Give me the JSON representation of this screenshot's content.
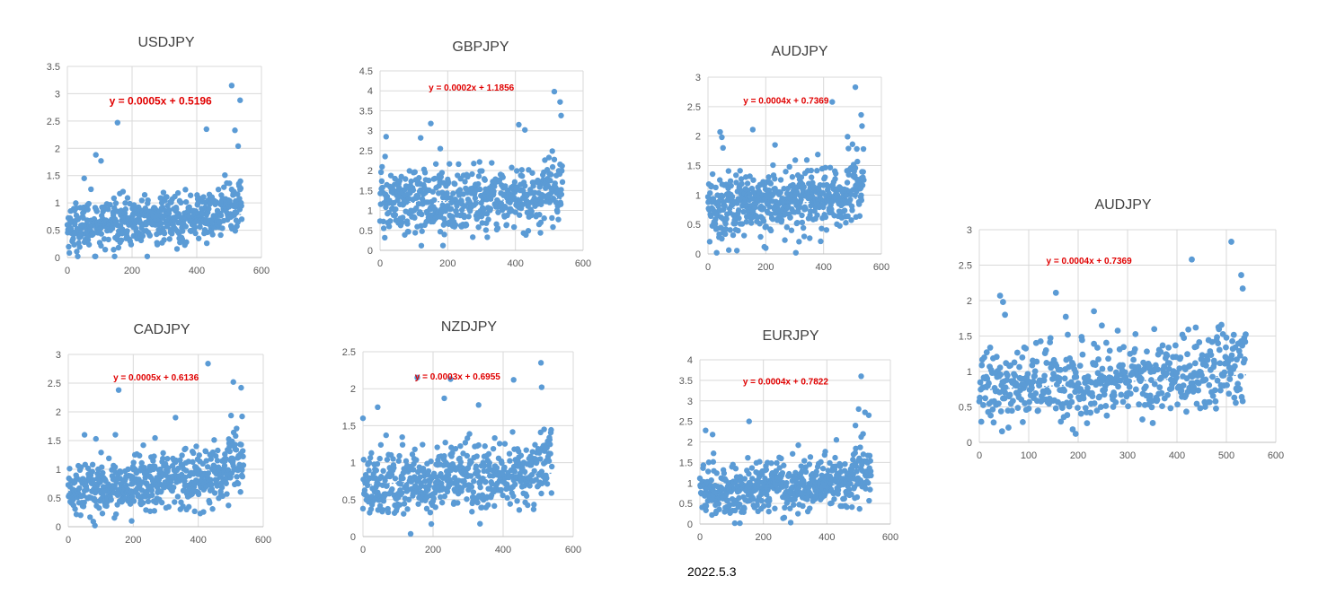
{
  "footer": {
    "date": "2022.5.3"
  },
  "colors": {
    "point": "#5B9BD5",
    "trendline": "#5B9BD5",
    "equation": "#E00000",
    "grid": "#D9D9D9",
    "axis_text": "#595959",
    "title": "#404040"
  },
  "chart_data": [
    {
      "id": "usdjpy",
      "type": "scatter",
      "title": "USDJPY",
      "equation": "y = 0.0005x + 0.5196",
      "slope": 0.0005,
      "intercept": 0.5196,
      "xlim": [
        0,
        600
      ],
      "ylim": [
        0,
        3.5
      ],
      "xticks": [
        0,
        200,
        400,
        600
      ],
      "yticks": [
        0,
        0.5,
        1,
        1.5,
        2,
        2.5,
        3,
        3.5
      ],
      "yticklabels": [
        "0",
        "0.5",
        "1",
        "1.5",
        "2",
        "2.5",
        "3",
        "3.5"
      ],
      "n_points": 540,
      "baseline": 0.55,
      "noise": 0.22,
      "outliers": [
        [
          88,
          1.88
        ],
        [
          104,
          1.77
        ],
        [
          155,
          2.47
        ],
        [
          430,
          2.35
        ],
        [
          508,
          3.15
        ],
        [
          518,
          2.33
        ],
        [
          528,
          2.04
        ],
        [
          534,
          2.88
        ],
        [
          52,
          1.45
        ],
        [
          73,
          1.25
        ]
      ]
    },
    {
      "id": "gbpjpy",
      "type": "scatter",
      "title": "GBPJPY",
      "equation": "y = 0.0002x + 1.1856",
      "slope": 0.0002,
      "intercept": 1.1856,
      "xlim": [
        0,
        600
      ],
      "ylim": [
        0,
        4.5
      ],
      "xticks": [
        0,
        200,
        400,
        600
      ],
      "yticks": [
        0,
        0.5,
        1,
        1.5,
        2,
        2.5,
        3,
        3.5,
        4,
        4.5
      ],
      "yticklabels": [
        "0",
        "0.5",
        "1",
        "1.5",
        "2",
        "2.5",
        "3",
        "3.5",
        "4",
        "4.5"
      ],
      "n_points": 540,
      "baseline": 1.2,
      "noise": 0.4,
      "outliers": [
        [
          18,
          2.85
        ],
        [
          150,
          3.18
        ],
        [
          186,
          0.12
        ],
        [
          410,
          3.15
        ],
        [
          428,
          3.02
        ],
        [
          515,
          3.98
        ],
        [
          532,
          3.72
        ],
        [
          535,
          3.38
        ],
        [
          120,
          2.82
        ],
        [
          178,
          2.55
        ]
      ]
    },
    {
      "id": "audjpy-small",
      "type": "scatter",
      "title": "AUDJPY",
      "equation": "y = 0.0004x + 0.7369",
      "slope": 0.0004,
      "intercept": 0.7369,
      "xlim": [
        0,
        600
      ],
      "ylim": [
        0,
        3
      ],
      "xticks": [
        0,
        200,
        400,
        600
      ],
      "yticks": [
        0,
        0.5,
        1,
        1.5,
        2,
        2.5,
        3
      ],
      "yticklabels": [
        "0",
        "0.5",
        "1",
        "1.5",
        "2",
        "2.5",
        "3"
      ],
      "n_points": 540,
      "baseline": 0.75,
      "noise": 0.27,
      "outliers": [
        [
          42,
          2.07
        ],
        [
          48,
          1.98
        ],
        [
          155,
          2.11
        ],
        [
          195,
          0.12
        ],
        [
          232,
          1.85
        ],
        [
          430,
          2.58
        ],
        [
          510,
          2.83
        ],
        [
          530,
          2.36
        ],
        [
          533,
          2.17
        ],
        [
          52,
          1.8
        ]
      ]
    },
    {
      "id": "audjpy-large",
      "type": "scatter",
      "title": "AUDJPY",
      "equation": "y = 0.0004x + 0.7369",
      "slope": 0.0004,
      "intercept": 0.7369,
      "xlim": [
        0,
        600
      ],
      "ylim": [
        0,
        3
      ],
      "xticks": [
        0,
        100,
        200,
        300,
        400,
        500,
        600
      ],
      "yticks": [
        0,
        0.5,
        1,
        1.5,
        2,
        2.5,
        3
      ],
      "yticklabels": [
        "0",
        "0.5",
        "1",
        "1.5",
        "2",
        "2.5",
        "3"
      ],
      "n_points": 540,
      "baseline": 0.75,
      "noise": 0.27,
      "outliers": [
        [
          42,
          2.07
        ],
        [
          48,
          1.98
        ],
        [
          155,
          2.11
        ],
        [
          195,
          0.12
        ],
        [
          232,
          1.85
        ],
        [
          430,
          2.58
        ],
        [
          510,
          2.83
        ],
        [
          530,
          2.36
        ],
        [
          533,
          2.17
        ],
        [
          52,
          1.8
        ]
      ]
    },
    {
      "id": "cadjpy",
      "type": "scatter",
      "title": "CADJPY",
      "equation": "y = 0.0005x + 0.6136",
      "slope": 0.0005,
      "intercept": 0.6136,
      "xlim": [
        0,
        600
      ],
      "ylim": [
        0,
        3
      ],
      "xticks": [
        0,
        200,
        400,
        600
      ],
      "yticks": [
        0,
        0.5,
        1,
        1.5,
        2,
        2.5,
        3
      ],
      "yticklabels": [
        "0",
        "0.5",
        "1",
        "1.5",
        "2",
        "2.5",
        "3"
      ],
      "n_points": 540,
      "baseline": 0.65,
      "noise": 0.25,
      "outliers": [
        [
          155,
          2.38
        ],
        [
          195,
          0.1
        ],
        [
          330,
          1.9
        ],
        [
          430,
          2.84
        ],
        [
          508,
          2.52
        ],
        [
          532,
          2.42
        ],
        [
          535,
          1.92
        ],
        [
          85,
          1.53
        ],
        [
          50,
          1.6
        ]
      ]
    },
    {
      "id": "nzdjpy",
      "type": "scatter",
      "title": "NZDJPY",
      "equation": "y = 0.0003x + 0.6955",
      "slope": 0.0003,
      "intercept": 0.6955,
      "xlim": [
        0,
        600
      ],
      "ylim": [
        0,
        2.5
      ],
      "xticks": [
        0,
        200,
        400,
        600
      ],
      "yticks": [
        0,
        0.5,
        1,
        1.5,
        2,
        2.5
      ],
      "yticklabels": [
        "0",
        "0.5",
        "1",
        "1.5",
        "2",
        "2.5"
      ],
      "n_points": 540,
      "baseline": 0.7,
      "noise": 0.22,
      "outliers": [
        [
          155,
          2.15
        ],
        [
          195,
          0.17
        ],
        [
          232,
          1.87
        ],
        [
          250,
          2.13
        ],
        [
          330,
          1.78
        ],
        [
          430,
          2.12
        ],
        [
          508,
          2.35
        ],
        [
          510,
          2.02
        ],
        [
          42,
          1.75
        ],
        [
          0,
          1.6
        ]
      ]
    },
    {
      "id": "eurjpy",
      "type": "scatter",
      "title": "EURJPY",
      "equation": "y = 0.0004x + 0.7822",
      "slope": 0.0004,
      "intercept": 0.7822,
      "xlim": [
        0,
        600
      ],
      "ylim": [
        0,
        4
      ],
      "xticks": [
        0,
        200,
        400,
        600
      ],
      "yticks": [
        0,
        0.5,
        1,
        1.5,
        2,
        2.5,
        3,
        3.5,
        4
      ],
      "yticklabels": [
        "0",
        "0.5",
        "1",
        "1.5",
        "2",
        "2.5",
        "3",
        "3.5",
        "4"
      ],
      "n_points": 540,
      "baseline": 0.8,
      "noise": 0.3,
      "outliers": [
        [
          18,
          2.28
        ],
        [
          40,
          2.18
        ],
        [
          155,
          2.5
        ],
        [
          310,
          1.92
        ],
        [
          430,
          2.05
        ],
        [
          508,
          3.6
        ],
        [
          520,
          2.72
        ],
        [
          532,
          2.65
        ],
        [
          500,
          2.8
        ],
        [
          490,
          2.4
        ]
      ]
    }
  ]
}
